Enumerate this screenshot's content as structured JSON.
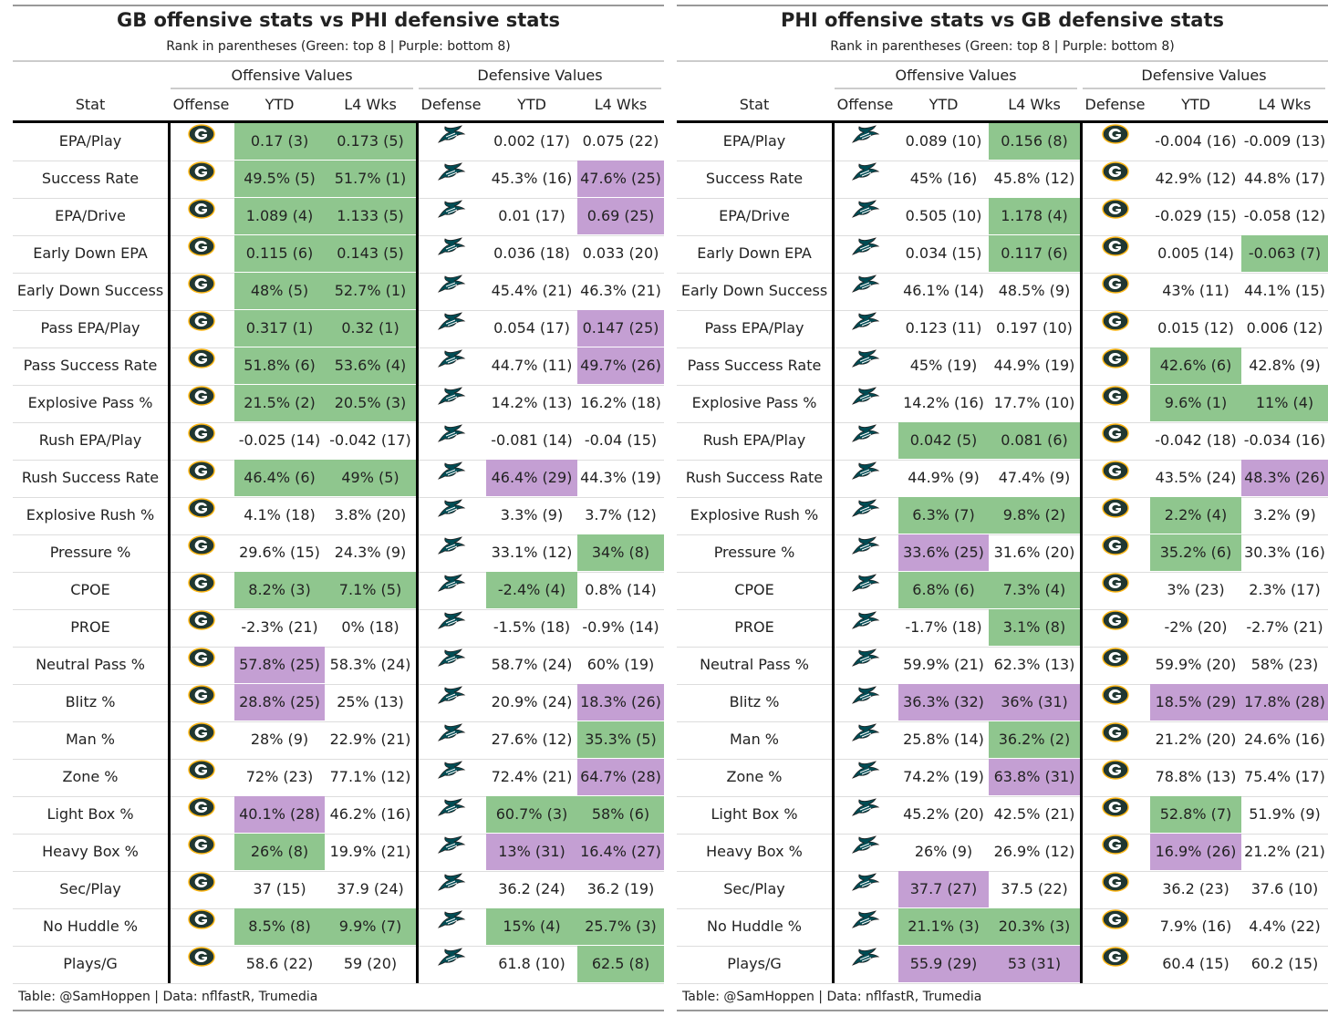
{
  "colors": {
    "top8": "#8fc68e",
    "bottom8": "#c49fd3"
  },
  "chart_data": [
    {
      "type": "table",
      "title": "GB offensive stats vs PHI defensive stats",
      "subtitle": "Rank in parentheses (Green: top 8 | Purple: bottom 8)",
      "spanners": [
        "Offensive Values",
        "Defensive Values"
      ],
      "columns": [
        "Stat",
        "Offense",
        "YTD",
        "L4 Wks",
        "Defense",
        "YTD",
        "L4 Wks"
      ],
      "offense_team_icon": "packers-logo-icon",
      "defense_team_icon": "eagles-logo-icon",
      "footer": "Table: @SamHoppen | Data: nflfastR, Trumedia",
      "rows": [
        {
          "stat": "EPA/Play",
          "cells": [
            [
              "0.17 (3)",
              "g"
            ],
            [
              "0.173 (5)",
              "g"
            ],
            [
              "0.002 (17)",
              ""
            ],
            [
              "0.075 (22)",
              ""
            ]
          ]
        },
        {
          "stat": "Success Rate",
          "cells": [
            [
              "49.5% (5)",
              "g"
            ],
            [
              "51.7% (1)",
              "g"
            ],
            [
              "45.3% (16)",
              ""
            ],
            [
              "47.6% (25)",
              "p"
            ]
          ]
        },
        {
          "stat": "EPA/Drive",
          "cells": [
            [
              "1.089 (4)",
              "g"
            ],
            [
              "1.133 (5)",
              "g"
            ],
            [
              "0.01 (17)",
              ""
            ],
            [
              "0.69 (25)",
              "p"
            ]
          ]
        },
        {
          "stat": "Early Down EPA",
          "cells": [
            [
              "0.115 (6)",
              "g"
            ],
            [
              "0.143 (5)",
              "g"
            ],
            [
              "0.036 (18)",
              ""
            ],
            [
              "0.033 (20)",
              ""
            ]
          ]
        },
        {
          "stat": "Early Down Success",
          "cells": [
            [
              "48% (5)",
              "g"
            ],
            [
              "52.7% (1)",
              "g"
            ],
            [
              "45.4% (21)",
              ""
            ],
            [
              "46.3% (21)",
              ""
            ]
          ]
        },
        {
          "stat": "Pass EPA/Play",
          "cells": [
            [
              "0.317 (1)",
              "g"
            ],
            [
              "0.32 (1)",
              "g"
            ],
            [
              "0.054 (17)",
              ""
            ],
            [
              "0.147 (25)",
              "p"
            ]
          ]
        },
        {
          "stat": "Pass Success Rate",
          "cells": [
            [
              "51.8% (6)",
              "g"
            ],
            [
              "53.6% (4)",
              "g"
            ],
            [
              "44.7% (11)",
              ""
            ],
            [
              "49.7% (26)",
              "p"
            ]
          ]
        },
        {
          "stat": "Explosive Pass %",
          "cells": [
            [
              "21.5% (2)",
              "g"
            ],
            [
              "20.5% (3)",
              "g"
            ],
            [
              "14.2% (13)",
              ""
            ],
            [
              "16.2% (18)",
              ""
            ]
          ]
        },
        {
          "stat": "Rush EPA/Play",
          "cells": [
            [
              "-0.025 (14)",
              ""
            ],
            [
              "-0.042 (17)",
              ""
            ],
            [
              "-0.081 (14)",
              ""
            ],
            [
              "-0.04 (15)",
              ""
            ]
          ]
        },
        {
          "stat": "Rush Success Rate",
          "cells": [
            [
              "46.4% (6)",
              "g"
            ],
            [
              "49% (5)",
              "g"
            ],
            [
              "46.4% (29)",
              "p"
            ],
            [
              "44.3% (19)",
              ""
            ]
          ]
        },
        {
          "stat": "Explosive Rush %",
          "cells": [
            [
              "4.1% (18)",
              ""
            ],
            [
              "3.8% (20)",
              ""
            ],
            [
              "3.3% (9)",
              ""
            ],
            [
              "3.7% (12)",
              ""
            ]
          ]
        },
        {
          "stat": "Pressure %",
          "cells": [
            [
              "29.6% (15)",
              ""
            ],
            [
              "24.3% (9)",
              ""
            ],
            [
              "33.1% (12)",
              ""
            ],
            [
              "34% (8)",
              "g"
            ]
          ]
        },
        {
          "stat": "CPOE",
          "cells": [
            [
              "8.2% (3)",
              "g"
            ],
            [
              "7.1% (5)",
              "g"
            ],
            [
              "-2.4% (4)",
              "g"
            ],
            [
              "0.8% (14)",
              ""
            ]
          ]
        },
        {
          "stat": "PROE",
          "cells": [
            [
              "-2.3% (21)",
              ""
            ],
            [
              "0% (18)",
              ""
            ],
            [
              "-1.5% (18)",
              ""
            ],
            [
              "-0.9% (14)",
              ""
            ]
          ]
        },
        {
          "stat": "Neutral Pass %",
          "cells": [
            [
              "57.8% (25)",
              "p"
            ],
            [
              "58.3% (24)",
              ""
            ],
            [
              "58.7% (24)",
              ""
            ],
            [
              "60% (19)",
              ""
            ]
          ]
        },
        {
          "stat": "Blitz %",
          "cells": [
            [
              "28.8% (25)",
              "p"
            ],
            [
              "25% (13)",
              ""
            ],
            [
              "20.9% (24)",
              ""
            ],
            [
              "18.3% (26)",
              "p"
            ]
          ]
        },
        {
          "stat": "Man %",
          "cells": [
            [
              "28% (9)",
              ""
            ],
            [
              "22.9% (21)",
              ""
            ],
            [
              "27.6% (12)",
              ""
            ],
            [
              "35.3% (5)",
              "g"
            ]
          ]
        },
        {
          "stat": "Zone %",
          "cells": [
            [
              "72% (23)",
              ""
            ],
            [
              "77.1% (12)",
              ""
            ],
            [
              "72.4% (21)",
              ""
            ],
            [
              "64.7% (28)",
              "p"
            ]
          ]
        },
        {
          "stat": "Light Box %",
          "cells": [
            [
              "40.1% (28)",
              "p"
            ],
            [
              "46.2% (16)",
              ""
            ],
            [
              "60.7% (3)",
              "g"
            ],
            [
              "58% (6)",
              "g"
            ]
          ]
        },
        {
          "stat": "Heavy Box %",
          "cells": [
            [
              "26% (8)",
              "g"
            ],
            [
              "19.9% (21)",
              ""
            ],
            [
              "13% (31)",
              "p"
            ],
            [
              "16.4% (27)",
              "p"
            ]
          ]
        },
        {
          "stat": "Sec/Play",
          "cells": [
            [
              "37 (15)",
              ""
            ],
            [
              "37.9 (24)",
              ""
            ],
            [
              "36.2 (24)",
              ""
            ],
            [
              "36.2 (19)",
              ""
            ]
          ]
        },
        {
          "stat": "No Huddle %",
          "cells": [
            [
              "8.5% (8)",
              "g"
            ],
            [
              "9.9% (7)",
              "g"
            ],
            [
              "15% (4)",
              "g"
            ],
            [
              "25.7% (3)",
              "g"
            ]
          ]
        },
        {
          "stat": "Plays/G",
          "cells": [
            [
              "58.6 (22)",
              ""
            ],
            [
              "59 (20)",
              ""
            ],
            [
              "61.8 (10)",
              ""
            ],
            [
              "62.5 (8)",
              "g"
            ]
          ]
        }
      ]
    },
    {
      "type": "table",
      "title": "PHI offensive stats vs GB defensive stats",
      "subtitle": "Rank in parentheses (Green: top 8 | Purple: bottom 8)",
      "spanners": [
        "Offensive Values",
        "Defensive Values"
      ],
      "columns": [
        "Stat",
        "Offense",
        "YTD",
        "L4 Wks",
        "Defense",
        "YTD",
        "L4 Wks"
      ],
      "offense_team_icon": "eagles-logo-icon",
      "defense_team_icon": "packers-logo-icon",
      "footer": "Table: @SamHoppen | Data: nflfastR, Trumedia",
      "rows": [
        {
          "stat": "EPA/Play",
          "cells": [
            [
              "0.089 (10)",
              ""
            ],
            [
              "0.156 (8)",
              "g"
            ],
            [
              "-0.004 (16)",
              ""
            ],
            [
              "-0.009 (13)",
              ""
            ]
          ]
        },
        {
          "stat": "Success Rate",
          "cells": [
            [
              "45% (16)",
              ""
            ],
            [
              "45.8% (12)",
              ""
            ],
            [
              "42.9% (12)",
              ""
            ],
            [
              "44.8% (17)",
              ""
            ]
          ]
        },
        {
          "stat": "EPA/Drive",
          "cells": [
            [
              "0.505 (10)",
              ""
            ],
            [
              "1.178 (4)",
              "g"
            ],
            [
              "-0.029 (15)",
              ""
            ],
            [
              "-0.058 (12)",
              ""
            ]
          ]
        },
        {
          "stat": "Early Down EPA",
          "cells": [
            [
              "0.034 (15)",
              ""
            ],
            [
              "0.117 (6)",
              "g"
            ],
            [
              "0.005 (14)",
              ""
            ],
            [
              "-0.063 (7)",
              "g"
            ]
          ]
        },
        {
          "stat": "Early Down Success",
          "cells": [
            [
              "46.1% (14)",
              ""
            ],
            [
              "48.5% (9)",
              ""
            ],
            [
              "43% (11)",
              ""
            ],
            [
              "44.1% (15)",
              ""
            ]
          ]
        },
        {
          "stat": "Pass EPA/Play",
          "cells": [
            [
              "0.123 (11)",
              ""
            ],
            [
              "0.197 (10)",
              ""
            ],
            [
              "0.015 (12)",
              ""
            ],
            [
              "0.006 (12)",
              ""
            ]
          ]
        },
        {
          "stat": "Pass Success Rate",
          "cells": [
            [
              "45% (19)",
              ""
            ],
            [
              "44.9% (19)",
              ""
            ],
            [
              "42.6% (6)",
              "g"
            ],
            [
              "42.8% (9)",
              ""
            ]
          ]
        },
        {
          "stat": "Explosive Pass %",
          "cells": [
            [
              "14.2% (16)",
              ""
            ],
            [
              "17.7% (10)",
              ""
            ],
            [
              "9.6% (1)",
              "g"
            ],
            [
              "11% (4)",
              "g"
            ]
          ]
        },
        {
          "stat": "Rush EPA/Play",
          "cells": [
            [
              "0.042 (5)",
              "g"
            ],
            [
              "0.081 (6)",
              "g"
            ],
            [
              "-0.042 (18)",
              ""
            ],
            [
              "-0.034 (16)",
              ""
            ]
          ]
        },
        {
          "stat": "Rush Success Rate",
          "cells": [
            [
              "44.9% (9)",
              ""
            ],
            [
              "47.4% (9)",
              ""
            ],
            [
              "43.5% (24)",
              ""
            ],
            [
              "48.3% (26)",
              "p"
            ]
          ]
        },
        {
          "stat": "Explosive Rush %",
          "cells": [
            [
              "6.3% (7)",
              "g"
            ],
            [
              "9.8% (2)",
              "g"
            ],
            [
              "2.2% (4)",
              "g"
            ],
            [
              "3.2% (9)",
              ""
            ]
          ]
        },
        {
          "stat": "Pressure %",
          "cells": [
            [
              "33.6% (25)",
              "p"
            ],
            [
              "31.6% (20)",
              ""
            ],
            [
              "35.2% (6)",
              "g"
            ],
            [
              "30.3% (16)",
              ""
            ]
          ]
        },
        {
          "stat": "CPOE",
          "cells": [
            [
              "6.8% (6)",
              "g"
            ],
            [
              "7.3% (4)",
              "g"
            ],
            [
              "3% (23)",
              ""
            ],
            [
              "2.3% (17)",
              ""
            ]
          ]
        },
        {
          "stat": "PROE",
          "cells": [
            [
              "-1.7% (18)",
              ""
            ],
            [
              "3.1% (8)",
              "g"
            ],
            [
              "-2% (20)",
              ""
            ],
            [
              "-2.7% (21)",
              ""
            ]
          ]
        },
        {
          "stat": "Neutral Pass %",
          "cells": [
            [
              "59.9% (21)",
              ""
            ],
            [
              "62.3% (13)",
              ""
            ],
            [
              "59.9% (20)",
              ""
            ],
            [
              "58% (23)",
              ""
            ]
          ]
        },
        {
          "stat": "Blitz %",
          "cells": [
            [
              "36.3% (32)",
              "p"
            ],
            [
              "36% (31)",
              "p"
            ],
            [
              "18.5% (29)",
              "p"
            ],
            [
              "17.8% (28)",
              "p"
            ]
          ]
        },
        {
          "stat": "Man %",
          "cells": [
            [
              "25.8% (14)",
              ""
            ],
            [
              "36.2% (2)",
              "g"
            ],
            [
              "21.2% (20)",
              ""
            ],
            [
              "24.6% (16)",
              ""
            ]
          ]
        },
        {
          "stat": "Zone %",
          "cells": [
            [
              "74.2% (19)",
              ""
            ],
            [
              "63.8% (31)",
              "p"
            ],
            [
              "78.8% (13)",
              ""
            ],
            [
              "75.4% (17)",
              ""
            ]
          ]
        },
        {
          "stat": "Light Box %",
          "cells": [
            [
              "45.2% (20)",
              ""
            ],
            [
              "42.5% (21)",
              ""
            ],
            [
              "52.8% (7)",
              "g"
            ],
            [
              "51.9% (9)",
              ""
            ]
          ]
        },
        {
          "stat": "Heavy Box %",
          "cells": [
            [
              "26% (9)",
              ""
            ],
            [
              "26.9% (12)",
              ""
            ],
            [
              "16.9% (26)",
              "p"
            ],
            [
              "21.2% (21)",
              ""
            ]
          ]
        },
        {
          "stat": "Sec/Play",
          "cells": [
            [
              "37.7 (27)",
              "p"
            ],
            [
              "37.5 (22)",
              ""
            ],
            [
              "36.2 (23)",
              ""
            ],
            [
              "37.6 (10)",
              ""
            ]
          ]
        },
        {
          "stat": "No Huddle %",
          "cells": [
            [
              "21.1% (3)",
              "g"
            ],
            [
              "20.3% (3)",
              "g"
            ],
            [
              "7.9% (16)",
              ""
            ],
            [
              "4.4% (22)",
              ""
            ]
          ]
        },
        {
          "stat": "Plays/G",
          "cells": [
            [
              "55.9 (29)",
              "p"
            ],
            [
              "53 (31)",
              "p"
            ],
            [
              "60.4 (15)",
              ""
            ],
            [
              "60.2 (15)",
              ""
            ]
          ]
        }
      ]
    }
  ]
}
